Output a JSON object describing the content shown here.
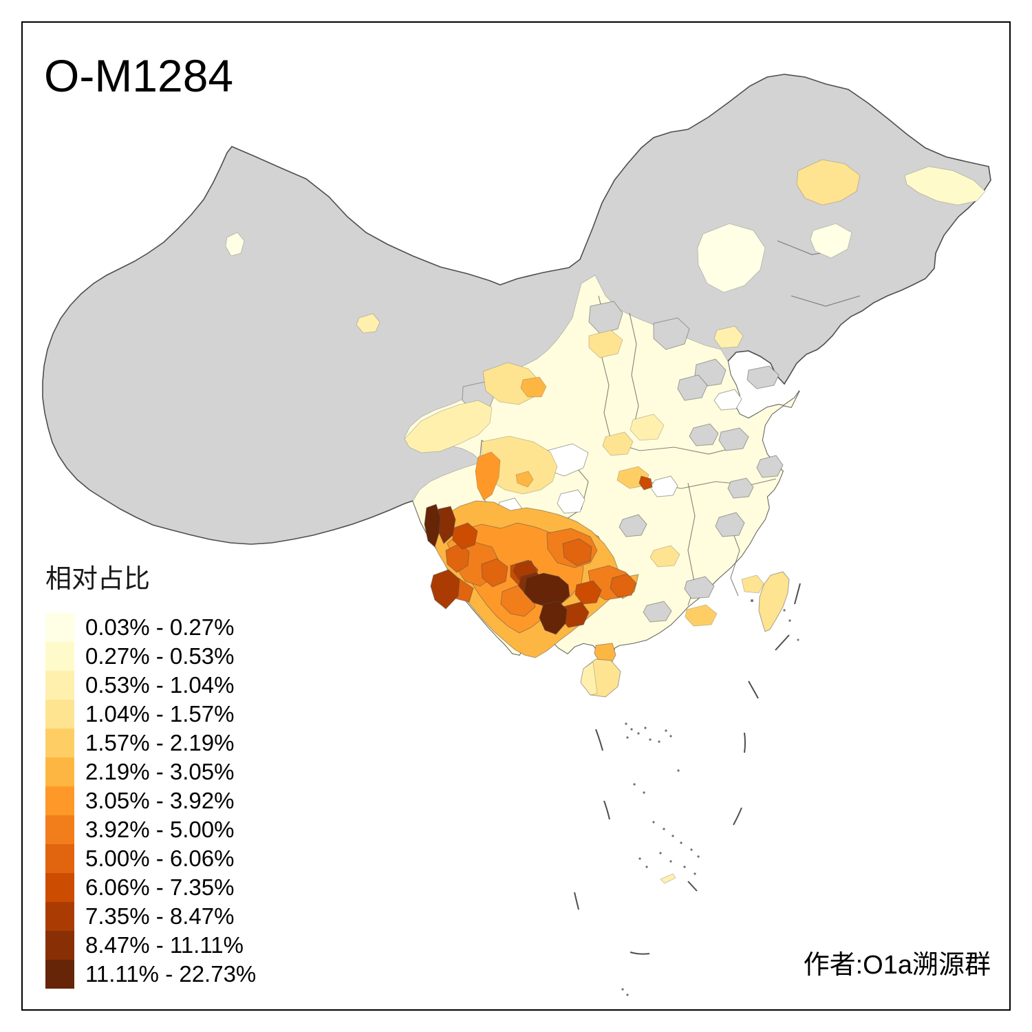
{
  "title": "O-M1284",
  "legend": {
    "title": "相对占比",
    "classes": [
      {
        "label": "0.03% - 0.27%",
        "color": "#FFFFE5"
      },
      {
        "label": "0.27% - 0.53%",
        "color": "#FFFACA"
      },
      {
        "label": "0.53% - 1.04%",
        "color": "#FFF0AE"
      },
      {
        "label": "1.04% - 1.57%",
        "color": "#FEE391"
      },
      {
        "label": "1.57% - 2.19%",
        "color": "#FECE65"
      },
      {
        "label": "2.19% - 3.05%",
        "color": "#FEB642"
      },
      {
        "label": "3.05% - 3.92%",
        "color": "#FE9929"
      },
      {
        "label": "3.92% - 5.00%",
        "color": "#F27E1B"
      },
      {
        "label": "5.00% - 6.06%",
        "color": "#E1640E"
      },
      {
        "label": "6.06% - 7.35%",
        "color": "#CC4C02"
      },
      {
        "label": "7.35% - 8.47%",
        "color": "#AA3C03"
      },
      {
        "label": "8.47% - 11.11%",
        "color": "#882F05"
      },
      {
        "label": "11.11% - 22.73%",
        "color": "#662506"
      }
    ]
  },
  "attribution": "作者:O1a溯源群",
  "map": {
    "no_data_color": "#D3D3D3",
    "zero_color": "#FFFFFF",
    "pale_base_color": "#FFFDDE",
    "boundary_color": "#4D4D4D",
    "background": "#FFFFFF"
  }
}
